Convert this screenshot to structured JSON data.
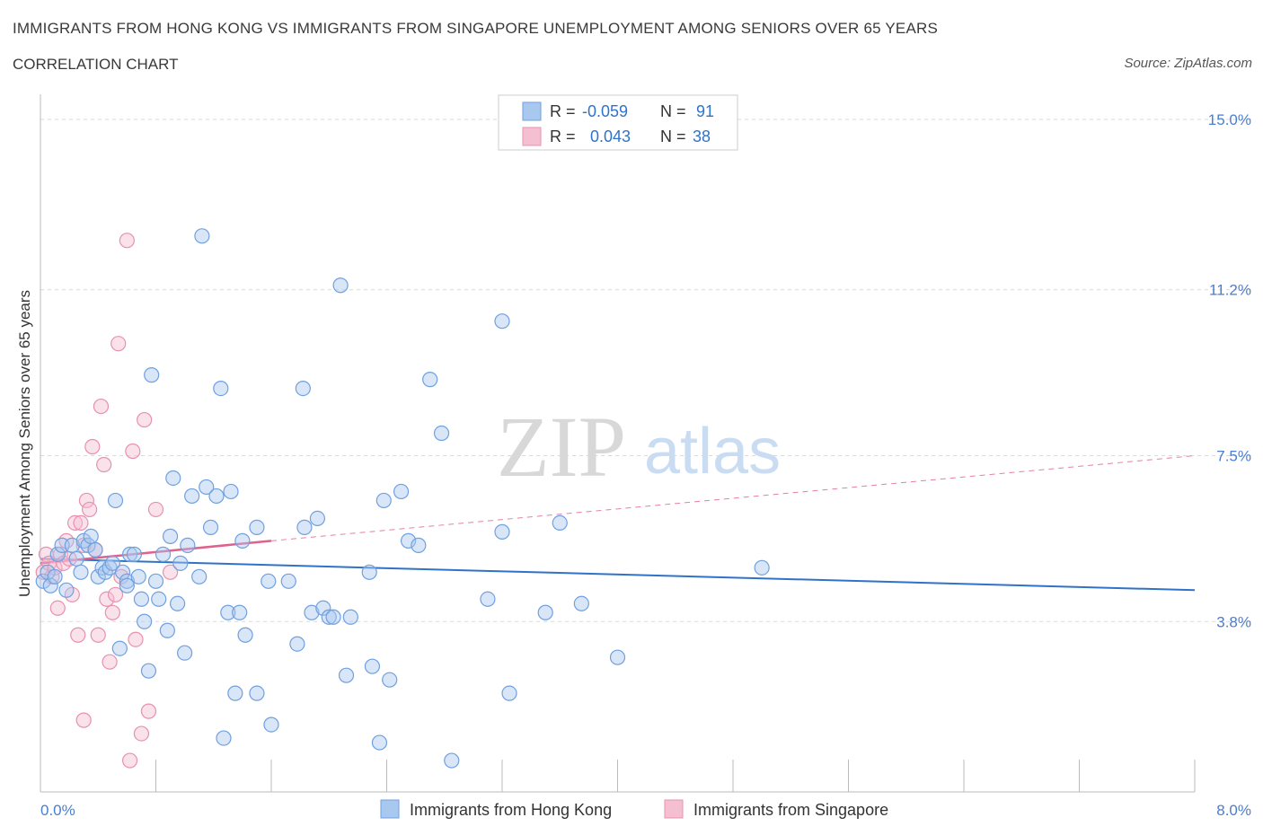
{
  "header": {
    "title": "IMMIGRANTS FROM HONG KONG VS IMMIGRANTS FROM SINGAPORE UNEMPLOYMENT AMONG SENIORS OVER 65 YEARS",
    "subtitle": "CORRELATION CHART",
    "source": "Source: ZipAtlas.com"
  },
  "watermark": {
    "zip": "ZIP",
    "atlas": "atlas"
  },
  "colors": {
    "blue": "#6fa0e0",
    "blue_fill": "#a9c8f0",
    "blue_line": "#2f73c9",
    "pink": "#e890b0",
    "pink_fill": "#f5bfd2",
    "pink_line": "#e0608e",
    "grid": "#d9d9d9",
    "tick_text": "#4a7ecf"
  },
  "legend_stats": {
    "rows": [
      {
        "r_label": "R =",
        "r_value": "-0.059",
        "n_label": "N =",
        "n_value": "91",
        "series": "blue"
      },
      {
        "r_label": "R =",
        "r_value": "0.043",
        "n_label": "N =",
        "n_value": "38",
        "series": "pink"
      }
    ]
  },
  "bottom_legend": [
    {
      "label": "Immigrants from Hong Kong",
      "series": "blue"
    },
    {
      "label": "Immigrants from Singapore",
      "series": "pink"
    }
  ],
  "chart_data": {
    "type": "scatter",
    "title": "IMMIGRANTS FROM HONG KONG VS IMMIGRANTS FROM SINGAPORE UNEMPLOYMENT AMONG SENIORS OVER 65 YEARS",
    "xlabel": "",
    "ylabel": "Unemployment Among Seniors over 65 years",
    "xlim": [
      0,
      8.0
    ],
    "ylim": [
      0,
      15.0
    ],
    "x_tick_labels": [
      "0.0%",
      "8.0%"
    ],
    "y_ticks": [
      3.8,
      7.5,
      11.2,
      15.0
    ],
    "y_tick_labels": [
      "3.8%",
      "7.5%",
      "11.2%",
      "15.0%"
    ],
    "series": [
      {
        "name": "Immigrants from Hong Kong",
        "color": "blue",
        "r": -0.059,
        "n": 91,
        "trend": {
          "x": [
            0.0,
            8.0
          ],
          "y": [
            5.2,
            4.5
          ],
          "style": "solid"
        },
        "points": [
          [
            0.02,
            4.7
          ],
          [
            0.05,
            4.9
          ],
          [
            0.07,
            4.6
          ],
          [
            0.1,
            4.8
          ],
          [
            0.12,
            5.3
          ],
          [
            0.15,
            5.5
          ],
          [
            0.18,
            4.5
          ],
          [
            0.22,
            5.5
          ],
          [
            0.25,
            5.2
          ],
          [
            0.28,
            4.9
          ],
          [
            0.3,
            5.6
          ],
          [
            0.33,
            5.5
          ],
          [
            0.35,
            5.7
          ],
          [
            0.38,
            5.4
          ],
          [
            0.4,
            4.8
          ],
          [
            0.43,
            5.0
          ],
          [
            0.45,
            4.9
          ],
          [
            0.48,
            5.0
          ],
          [
            0.5,
            5.1
          ],
          [
            0.52,
            6.5
          ],
          [
            0.55,
            3.2
          ],
          [
            0.57,
            4.9
          ],
          [
            0.6,
            4.7
          ],
          [
            0.62,
            5.3
          ],
          [
            0.65,
            5.3
          ],
          [
            0.68,
            4.8
          ],
          [
            0.7,
            4.3
          ],
          [
            0.72,
            3.8
          ],
          [
            0.75,
            2.7
          ],
          [
            0.77,
            9.3
          ],
          [
            0.8,
            4.7
          ],
          [
            0.82,
            4.3
          ],
          [
            0.85,
            5.3
          ],
          [
            0.88,
            3.6
          ],
          [
            0.9,
            5.7
          ],
          [
            0.92,
            7.0
          ],
          [
            0.95,
            4.2
          ],
          [
            0.97,
            5.1
          ],
          [
            1.0,
            3.1
          ],
          [
            1.02,
            5.5
          ],
          [
            1.12,
            12.4
          ],
          [
            1.05,
            6.6
          ],
          [
            1.1,
            4.8
          ],
          [
            1.15,
            6.8
          ],
          [
            1.18,
            5.9
          ],
          [
            1.22,
            6.6
          ],
          [
            1.25,
            9.0
          ],
          [
            1.27,
            1.2
          ],
          [
            1.3,
            4.0
          ],
          [
            1.32,
            6.7
          ],
          [
            1.35,
            2.2
          ],
          [
            1.38,
            4.0
          ],
          [
            1.4,
            5.6
          ],
          [
            1.42,
            3.5
          ],
          [
            1.5,
            5.9
          ],
          [
            1.58,
            4.7
          ],
          [
            1.6,
            1.5
          ],
          [
            1.72,
            4.7
          ],
          [
            1.78,
            3.3
          ],
          [
            1.82,
            9.0
          ],
          [
            1.83,
            5.9
          ],
          [
            1.88,
            4.0
          ],
          [
            1.92,
            6.1
          ],
          [
            1.96,
            4.1
          ],
          [
            2.0,
            3.9
          ],
          [
            2.03,
            3.9
          ],
          [
            2.08,
            11.3
          ],
          [
            2.12,
            2.6
          ],
          [
            2.15,
            3.9
          ],
          [
            2.28,
            4.9
          ],
          [
            2.3,
            2.8
          ],
          [
            2.35,
            1.1
          ],
          [
            2.38,
            6.5
          ],
          [
            2.42,
            2.5
          ],
          [
            2.5,
            6.7
          ],
          [
            2.55,
            5.6
          ],
          [
            2.62,
            5.5
          ],
          [
            2.7,
            9.2
          ],
          [
            2.78,
            8.0
          ],
          [
            2.85,
            0.7
          ],
          [
            3.2,
            10.5
          ],
          [
            3.1,
            4.3
          ],
          [
            3.2,
            5.8
          ],
          [
            3.25,
            2.2
          ],
          [
            3.5,
            4.0
          ],
          [
            3.6,
            6.0
          ],
          [
            3.75,
            4.2
          ],
          [
            4.0,
            3.0
          ],
          [
            5.0,
            5.0
          ],
          [
            1.5,
            2.2
          ],
          [
            0.6,
            4.6
          ]
        ]
      },
      {
        "name": "Immigrants from Singapore",
        "color": "pink",
        "r": 0.043,
        "n": 38,
        "trend": {
          "x": [
            0.0,
            1.6
          ],
          "y": [
            5.1,
            5.6
          ],
          "style": "solid",
          "extended": {
            "x": [
              1.6,
              8.0
            ],
            "y": [
              5.6,
              7.5
            ],
            "style": "dashed"
          }
        },
        "points": [
          [
            0.02,
            4.9
          ],
          [
            0.04,
            5.3
          ],
          [
            0.06,
            5.1
          ],
          [
            0.08,
            4.8
          ],
          [
            0.1,
            5.0
          ],
          [
            0.12,
            4.1
          ],
          [
            0.14,
            5.3
          ],
          [
            0.16,
            5.1
          ],
          [
            0.18,
            5.6
          ],
          [
            0.2,
            5.2
          ],
          [
            0.22,
            4.4
          ],
          [
            0.24,
            6.0
          ],
          [
            0.26,
            3.5
          ],
          [
            0.28,
            6.0
          ],
          [
            0.3,
            1.6
          ],
          [
            0.32,
            6.5
          ],
          [
            0.34,
            6.3
          ],
          [
            0.36,
            7.7
          ],
          [
            0.38,
            5.4
          ],
          [
            0.4,
            3.5
          ],
          [
            0.42,
            8.6
          ],
          [
            0.44,
            7.3
          ],
          [
            0.46,
            4.3
          ],
          [
            0.48,
            2.9
          ],
          [
            0.5,
            4.0
          ],
          [
            0.52,
            4.4
          ],
          [
            0.54,
            10.0
          ],
          [
            0.56,
            4.8
          ],
          [
            0.6,
            12.3
          ],
          [
            0.62,
            0.7
          ],
          [
            0.64,
            7.6
          ],
          [
            0.66,
            3.4
          ],
          [
            0.7,
            1.3
          ],
          [
            0.72,
            8.3
          ],
          [
            0.75,
            1.8
          ],
          [
            0.8,
            6.3
          ],
          [
            0.9,
            4.9
          ],
          [
            0.3,
            5.5
          ]
        ]
      }
    ]
  }
}
